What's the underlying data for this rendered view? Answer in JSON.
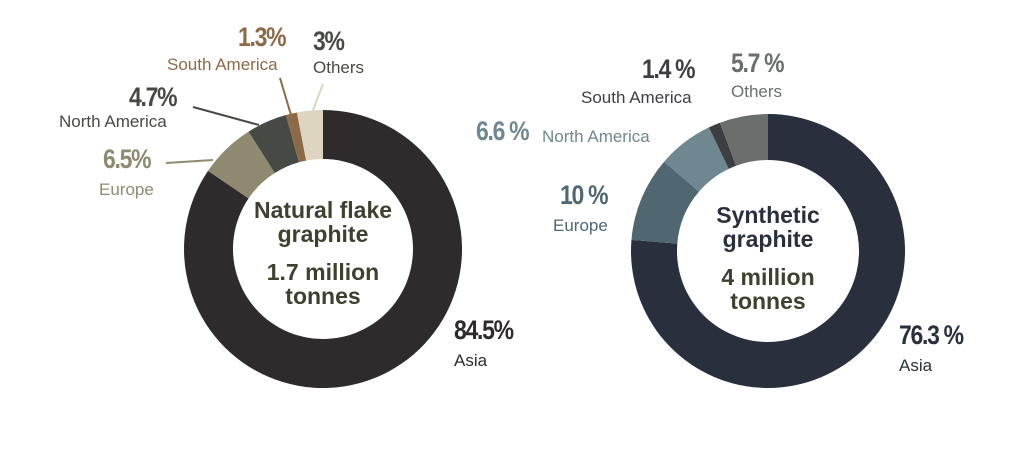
{
  "chart_data": [
    {
      "type": "pie",
      "title": "Natural flake graphite",
      "subtitle": "1.7 million tonnes",
      "categories": [
        "Asia",
        "Europe",
        "North America",
        "South America",
        "Others"
      ],
      "values": [
        84.5,
        6.5,
        4.7,
        1.3,
        3
      ],
      "labels": [
        "84.5%",
        "6.5%",
        "4.7%",
        "1.3%",
        "3%"
      ],
      "colors": [
        "#2f2b2d",
        "#8f8a6f",
        "#474a44",
        "#8d6a47",
        "#ddd5bf"
      ],
      "donut": true
    },
    {
      "type": "pie",
      "title": "Synthetic graphite",
      "subtitle": "4 million tonnes",
      "categories": [
        "Asia",
        "Europe",
        "North America",
        "South America",
        "Others"
      ],
      "values": [
        76.3,
        10,
        6.6,
        1.4,
        5.7
      ],
      "labels": [
        "76.3 %",
        "10 %",
        "6.6 %",
        "1.4 %",
        "5.7 %"
      ],
      "colors": [
        "#2a2f3d",
        "#506670",
        "#6e8790",
        "#3c3e42",
        "#6a6f6e"
      ],
      "donut": true
    }
  ],
  "natural": {
    "title_line1": "Natural flake",
    "title_line2": "graphite",
    "value_line1": "1.7 million",
    "value_line2": "tonnes",
    "asia_pct": "84.5%",
    "asia": "Asia",
    "europe_pct": "6.5%",
    "europe": "Europe",
    "na_pct": "4.7%",
    "na": "North America",
    "sa_pct": "1.3%",
    "sa": "South America",
    "others_pct": "3%",
    "others": "Others"
  },
  "synthetic": {
    "title_line1": "Synthetic",
    "title_line2": "graphite",
    "value_line1": "4 million",
    "value_line2": "tonnes",
    "asia_pct": "76.3 %",
    "asia": "Asia",
    "europe_pct": "10 %",
    "europe": "Europe",
    "na_pct": "6.6 %",
    "na": "North America",
    "sa_pct": "1.4 %",
    "sa": "South America",
    "others_pct": "5.7 %",
    "others": "Others"
  }
}
